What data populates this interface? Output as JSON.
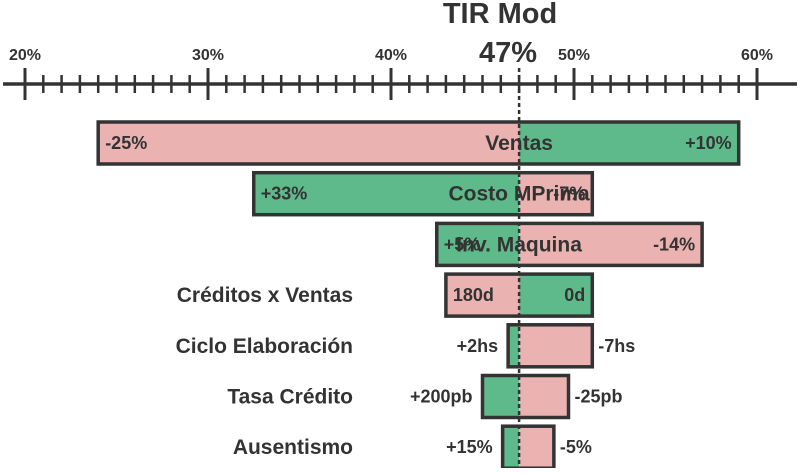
{
  "chart_data": {
    "type": "bar",
    "subtype": "tornado",
    "title": "TIR Mod",
    "base_value": 47,
    "base_label": "47%",
    "axis": {
      "min": 20,
      "max": 60,
      "major_ticks": [
        20,
        30,
        40,
        50,
        60
      ],
      "tick_labels": [
        "20%",
        "30%",
        "40%",
        "50%",
        "60%"
      ],
      "minor_step": 1,
      "position": "top"
    },
    "colors": {
      "increase": "#5fba8b",
      "decrease": "#eab2b0",
      "stroke": "#333333",
      "axis": "#333333"
    },
    "rows": [
      {
        "name": "Ventas",
        "left_value": 24,
        "left_label": "-25%",
        "left_effect": "decrease",
        "right_value": 59,
        "right_label": "+10%",
        "right_effect": "increase",
        "name_position": "inside",
        "labels_inside": true
      },
      {
        "name": "Costo MPrima",
        "left_value": 32.5,
        "left_label": "+33%",
        "left_effect": "increase",
        "right_value": 51,
        "right_label": "-7%",
        "right_effect": "decrease",
        "name_position": "inside",
        "labels_inside": true
      },
      {
        "name": "Inv. Maquina",
        "left_value": 42.5,
        "left_label": "+5%",
        "left_effect": "increase",
        "right_value": 57,
        "right_label": "-14%",
        "right_effect": "decrease",
        "name_position": "inside",
        "labels_inside": true
      },
      {
        "name": "Créditos x Ventas",
        "left_value": 43,
        "left_label": "180d",
        "left_effect": "decrease",
        "right_value": 51,
        "right_label": "0d",
        "right_effect": "increase",
        "name_position": "outside",
        "labels_inside": true
      },
      {
        "name": "Ciclo Elaboración",
        "left_value": 46.4,
        "left_label": "+2hs",
        "left_effect": "increase",
        "right_value": 51,
        "right_label": "-7hs",
        "right_effect": "decrease",
        "name_position": "outside",
        "labels_inside": false
      },
      {
        "name": "Tasa Crédito",
        "left_value": 45,
        "left_label": "+200pb",
        "left_effect": "increase",
        "right_value": 49.7,
        "right_label": "-25pb",
        "right_effect": "decrease",
        "name_position": "outside",
        "labels_inside": false
      },
      {
        "name": "Ausentismo",
        "left_value": 46.1,
        "left_label": "+15%",
        "left_effect": "increase",
        "right_value": 48.9,
        "right_label": "-5%",
        "right_effect": "decrease",
        "name_position": "outside",
        "labels_inside": false
      }
    ]
  }
}
